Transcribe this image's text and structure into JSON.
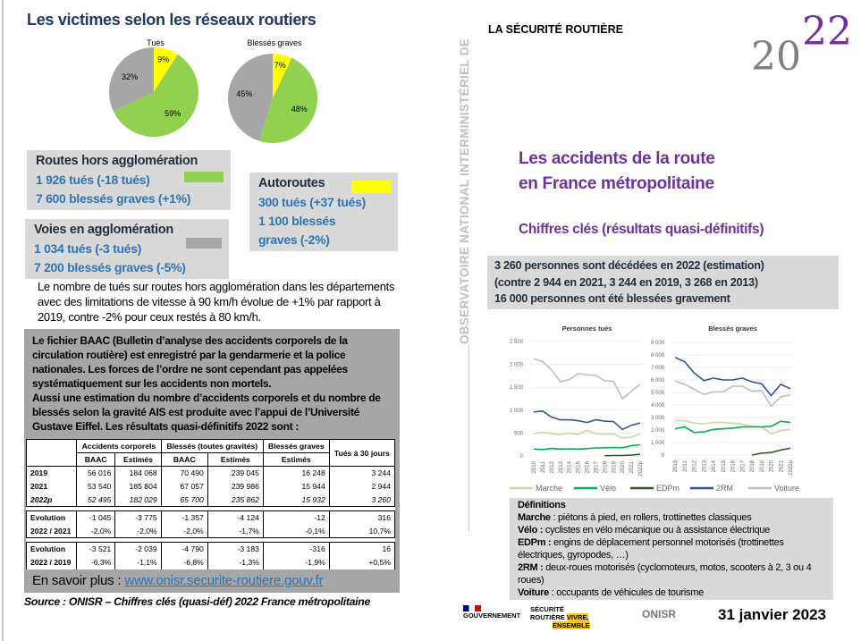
{
  "left": {
    "title": "Les victimes selon les réseaux routiers",
    "pies": [
      {
        "title": "Tués",
        "slices": [
          {
            "label": "9%",
            "value": 9,
            "color": "#ffff00"
          },
          {
            "label": "59%",
            "value": 59,
            "color": "#92d050"
          },
          {
            "label": "32%",
            "value": 32,
            "color": "#a6a6a6"
          }
        ]
      },
      {
        "title": "Blessés graves",
        "slices": [
          {
            "label": "7%",
            "value": 7,
            "color": "#ffff00"
          },
          {
            "label": "48%",
            "value": 48,
            "color": "#92d050"
          },
          {
            "label": "45%",
            "value": 45,
            "color": "#a6a6a6"
          }
        ]
      }
    ],
    "routes_hors": {
      "title": "Routes hors agglomération",
      "line1": "1 926 tués (-18 tués)",
      "line2": "7 600 blessés graves (+1%)",
      "color": "#92d050"
    },
    "voies_agglo": {
      "title": "Voies en agglomération",
      "line1": "1 034 tués (-3 tués)",
      "line2": "7 200 blessés graves (-5%)",
      "color": "#a6a6a6"
    },
    "autoroutes": {
      "title": "Autoroutes",
      "line1": "300 tués (+37 tués)",
      "line2": "1 100 blessés",
      "line3": "graves (-2%)",
      "color": "#ffff00"
    },
    "paragraph": "Le nombre de tués sur routes hors agglomération dans les départements avec des limitations de vitesse à 90 km/h évolue de +1% par rapport à 2019, contre -2% pour ceux restés à 80 km/h.",
    "baac_text": "Le fichier BAAC (Bulletin d’analyse des accidents corporels de la circulation routière) est enregistré par la gendarmerie et la police nationales. Les forces de l’ordre ne sont cependant pas appelées systématiquement sur les accidents non mortels.",
    "baac_text2": "Aussi une estimation du nombre d’accidents corporels et du nombre de blessés selon la gravité AIS est produite avec l’appui de l’Université Gustave Eiffel. Les résultats quasi-définitifs 2022 sont :",
    "table": {
      "groups": [
        "Accidents corporels",
        "Blessés (toutes gravités)",
        "Blessés graves",
        "Tués à 30 jours"
      ],
      "subheaders": [
        "BAAC",
        "Estimés",
        "BAAC",
        "Estimés",
        "Estimés"
      ],
      "rows": [
        [
          "2019",
          "56 016",
          "184 068",
          "70 490",
          "239 045",
          "16 248",
          "3 244"
        ],
        [
          "2021",
          "53 540",
          "185 804",
          "67 057",
          "239 986",
          "15 944",
          "2 944"
        ],
        [
          "2022p",
          "52 495",
          "182 029",
          "65 700",
          "235 862",
          "15 932",
          "3 260"
        ]
      ],
      "evo1": [
        [
          "Evolution",
          "-1 045",
          "-3 775",
          "-1 357",
          "-4 124",
          "-12",
          "316"
        ],
        [
          "2022 / 2021",
          "-2,0%",
          "-2,0%",
          "-2,0%",
          "-1,7%",
          "-0,1%",
          "10,7%"
        ]
      ],
      "evo2": [
        [
          "Evolution",
          "-3 521",
          "-2 039",
          "-4 790",
          "-3 183",
          "-316",
          "16"
        ],
        [
          "2022 / 2019",
          "-6,3%",
          "-1,1%",
          "-6,8%",
          "-1,3%",
          "-1,9%",
          "+0,5%"
        ]
      ]
    },
    "more_label": "En savoir plus : ",
    "more_link": "www.onisr.securite-routiere.gouv.fr",
    "source": "Source : ONISR – Chiffres clés (quasi-déf) 2022 France métropolitaine"
  },
  "right": {
    "brand": "LA SÉCURITÉ ROUTIÈRE",
    "vertical": "OBSERVATOIRE NATIONAL INTERMINISTÉRIEL DE",
    "year_logo": {
      "gray": "20",
      "purple": "22"
    },
    "title1": "Les accidents de la route",
    "title2": "en France métropolitaine",
    "subtitle": "Chiffres clés (résultats quasi-définitifs)",
    "key1": "3 260 personnes sont décédées en 2022 (estimation)",
    "key2": "(contre 2 944 en 2021, 3 244 en 2019, 3 268 en 2013)",
    "key3": "16 000 personnes ont été blessées gravement",
    "definitions": {
      "title": "Définitions",
      "items": [
        {
          "term": "Marche",
          "text": " : piétons à pied, en rollers, trottinettes classiques"
        },
        {
          "term": "Vélo :",
          "text": " cyclistes en vélo mécanique ou à assistance électrique"
        },
        {
          "term": "EDPm :",
          "text": " engins de déplacement personnel motorisés (trottinettes électriques, gyropodes, …)"
        },
        {
          "term": "2RM :",
          "text": " deux-roues motorisés (cyclomoteurs, motos, scooters à 2, 3 ou 4 roues)"
        },
        {
          "term": "Voiture",
          "text": " : occupants de véhicules de tourisme"
        }
      ]
    },
    "logos": {
      "gouv": "GOUVERNEMENT",
      "sr1": "SÉCURITÉ",
      "sr2": "ROUTIÈRE",
      "sr3": "VIVRE,",
      "sr4": "ENSEMBLE",
      "onisr": "ONISR"
    },
    "date": "31 janvier 2023"
  },
  "chart_data": [
    {
      "type": "line",
      "title": "Personnes tués",
      "x": [
        "2010",
        "2011",
        "2012",
        "2013",
        "2014",
        "2015",
        "2016",
        "2017",
        "2018",
        "2019",
        "2020",
        "2021",
        "2022p"
      ],
      "ylim": [
        0,
        2500
      ],
      "yticks": [
        "0",
        "500",
        "1 000",
        "1 500",
        "2 000",
        "2 500"
      ],
      "grid": true,
      "legend": "bottom",
      "series": [
        {
          "name": "Marche",
          "color": "#c5d9a0",
          "values": [
            485,
            520,
            490,
            465,
            500,
            470,
            560,
            485,
            475,
            480,
            390,
            410,
            480
          ]
        },
        {
          "name": "Vélo",
          "color": "#00b050",
          "values": [
            150,
            140,
            165,
            150,
            155,
            150,
            160,
            175,
            175,
            185,
            180,
            225,
            245
          ]
        },
        {
          "name": "EDPm",
          "color": "#375623",
          "values": [
            null,
            null,
            null,
            null,
            null,
            null,
            null,
            null,
            5,
            10,
            10,
            20,
            35
          ]
        },
        {
          "name": "2RM",
          "color": "#2f5597",
          "values": [
            960,
            980,
            850,
            790,
            790,
            770,
            730,
            790,
            760,
            750,
            580,
            670,
            720
          ]
        },
        {
          "name": "Voiture",
          "color": "#bfbfbf",
          "values": [
            2120,
            2060,
            1880,
            1620,
            1670,
            1800,
            1770,
            1760,
            1640,
            1630,
            1250,
            1410,
            1570
          ]
        }
      ]
    },
    {
      "type": "line",
      "title": "Blessés graves",
      "x": [
        "2010",
        "2011",
        "2012",
        "2013",
        "2014",
        "2015",
        "2016",
        "2017",
        "2018",
        "2019",
        "2020",
        "2021",
        "2022p"
      ],
      "ylim": [
        0,
        9000
      ],
      "yticks": [
        "0",
        "1 000",
        "2 000",
        "3 000",
        "4 000",
        "5 000",
        "6 000",
        "7 000",
        "8 000",
        "9 000"
      ],
      "grid": true,
      "legend": "bottom",
      "series": [
        {
          "name": "Marche",
          "color": "#c5d9a0",
          "values": [
            2750,
            2750,
            2550,
            2500,
            2600,
            2600,
            2550,
            2450,
            2300,
            2250,
            1700,
            1950,
            2050
          ]
        },
        {
          "name": "Vélo",
          "color": "#00b050",
          "values": [
            2100,
            2250,
            1800,
            1850,
            2050,
            2100,
            2150,
            2250,
            2250,
            2250,
            2300,
            2700,
            2600
          ]
        },
        {
          "name": "EDPm",
          "color": "#375623",
          "values": [
            null,
            null,
            null,
            null,
            null,
            null,
            null,
            null,
            0,
            150,
            200,
            400,
            550
          ]
        },
        {
          "name": "2RM",
          "color": "#2f5597",
          "values": [
            7800,
            7450,
            6550,
            5950,
            6150,
            6000,
            6000,
            6150,
            5850,
            5700,
            4750,
            5650,
            5300
          ]
        },
        {
          "name": "Voiture",
          "color": "#bfbfbf",
          "values": [
            5900,
            5650,
            5250,
            4850,
            5050,
            5050,
            5500,
            5500,
            5100,
            5150,
            3900,
            4650,
            4800
          ]
        }
      ]
    }
  ]
}
